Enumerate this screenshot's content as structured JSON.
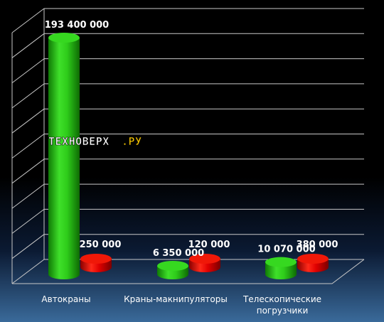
{
  "watermark": {
    "part1": "ТЕХНОВЕРХ",
    "part2": ".РУ"
  },
  "chart_data": {
    "type": "bar",
    "categories": [
      [
        "Автокраны"
      ],
      [
        "Краны-макнипуляторы"
      ],
      [
        "Телескопические",
        "погрузчики"
      ]
    ],
    "series": [
      {
        "color": "#2ecc1a",
        "values": [
          193400000,
          6350000,
          10070000
        ]
      },
      {
        "color": "#e00000",
        "values": [
          250000,
          120000,
          380000
        ]
      }
    ],
    "data_labels": [
      [
        "193 400 000",
        "6 350 000",
        "10 070 000"
      ],
      [
        "250 000",
        "120 000",
        "380 000"
      ]
    ],
    "ylim": [
      0,
      193400000
    ],
    "grid": true
  }
}
